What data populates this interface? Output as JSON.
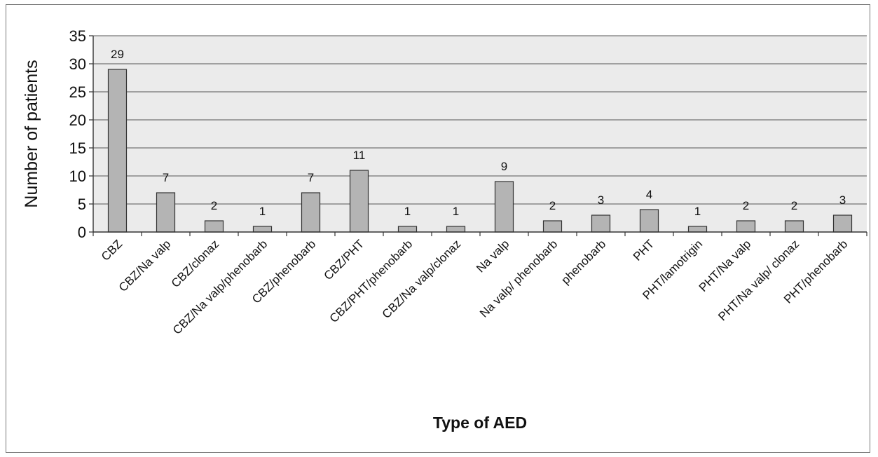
{
  "chart_data": {
    "type": "bar",
    "title": "",
    "xlabel": "Type of AED",
    "ylabel": "Number of patients",
    "ylim": [
      0,
      35
    ],
    "yticks": [
      0,
      5,
      10,
      15,
      20,
      25,
      30,
      35
    ],
    "grid": true,
    "legend": "none",
    "colors": {
      "bar_fill": "#b4b4b4",
      "bar_stroke": "#333333",
      "plot_background": "#ebebeb",
      "gridline": "#555555"
    },
    "categories": [
      "CBZ",
      "CBZ/Na valp",
      "CBZ/clonaz",
      "CBZ/Na valp/phenobarb",
      "CBZ/phenobarb",
      "CBZ/PHT",
      "CBZ/PHT/phenobarb",
      "CBZ/Na valp/clonaz",
      "Na valp",
      "Na valp/ phenobarb",
      "phenobarb",
      "PHT",
      "PHT/lamotrigin",
      "PHT/Na valp",
      "PHT/Na valp/ clonaz",
      "PHT/phenobarb"
    ],
    "values": [
      29,
      7,
      2,
      1,
      7,
      11,
      1,
      1,
      9,
      2,
      3,
      4,
      1,
      2,
      2,
      3
    ],
    "data_labels": [
      "29",
      "7",
      "2",
      "1",
      "7",
      "11",
      "1",
      "1",
      "9",
      "2",
      "3",
      "4",
      "1",
      "2",
      "2",
      "3"
    ]
  }
}
